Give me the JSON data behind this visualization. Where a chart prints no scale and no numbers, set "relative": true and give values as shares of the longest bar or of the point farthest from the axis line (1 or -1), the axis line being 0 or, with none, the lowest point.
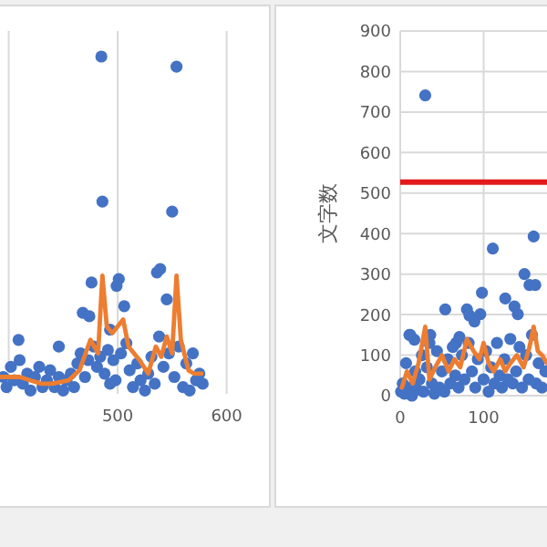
{
  "chart_data": [
    {
      "type": "scatter",
      "relative": true,
      "grid": "x",
      "marker": "circle",
      "tick_labels": "x",
      "xlim": [
        392,
        602
      ],
      "xticks": [
        {
          "value": 400,
          "label": null
        },
        500,
        600
      ],
      "series": [
        {
          "color": "#4472c4",
          "x": [
            485,
            554,
            486,
            550,
            476,
            501,
            536,
            539,
            545,
            499,
            506,
            468,
            474,
            493,
            446,
            409,
            493,
            395,
            398,
            402,
            405,
            410,
            413,
            417,
            420,
            424,
            428,
            431,
            435,
            438,
            442,
            446,
            450,
            453,
            457,
            460,
            463,
            466,
            470,
            473,
            478,
            481,
            484,
            488,
            491,
            496,
            498,
            503,
            508,
            511,
            514,
            518,
            521,
            525,
            528,
            531,
            534,
            538,
            542,
            547,
            552,
            556,
            560,
            563,
            566,
            569,
            572,
            575,
            578
          ],
          "values": [
            1.0,
            0.97,
            0.57,
            0.54,
            0.33,
            0.34,
            0.36,
            0.37,
            0.28,
            0.32,
            0.26,
            0.24,
            0.23,
            0.19,
            0.14,
            0.16,
            0.03,
            0.05,
            0.02,
            0.08,
            0.04,
            0.1,
            0.03,
            0.06,
            0.01,
            0.05,
            0.08,
            0.02,
            0.04,
            0.07,
            0.02,
            0.05,
            0.01,
            0.04,
            0.06,
            0.02,
            0.09,
            0.12,
            0.05,
            0.1,
            0.14,
            0.08,
            0.11,
            0.06,
            0.13,
            0.1,
            0.04,
            0.12,
            0.15,
            0.07,
            0.02,
            0.09,
            0.04,
            0.01,
            0.06,
            0.11,
            0.03,
            0.17,
            0.08,
            0.12,
            0.05,
            0.14,
            0.02,
            0.09,
            0.01,
            0.12,
            0.04,
            0.06,
            0.03
          ]
        },
        {
          "type": "line",
          "marker": "none",
          "color": "#ed7d31",
          "x": [
            392,
            400,
            410,
            420,
            430,
            440,
            455,
            465,
            475,
            482,
            486,
            490,
            495,
            500,
            505,
            510,
            520,
            528,
            535,
            540,
            545,
            550,
            554,
            558,
            565,
            570,
            577
          ],
          "values": [
            0.05,
            0.05,
            0.05,
            0.04,
            0.03,
            0.03,
            0.04,
            0.07,
            0.16,
            0.12,
            0.35,
            0.2,
            0.18,
            0.2,
            0.22,
            0.14,
            0.1,
            0.06,
            0.14,
            0.11,
            0.17,
            0.12,
            0.35,
            0.16,
            0.07,
            0.06,
            0.06
          ]
        }
      ]
    },
    {
      "type": "scatter",
      "ylabel": "文字数",
      "grid": true,
      "marker": "circle",
      "xlim": [
        0,
        176
      ],
      "xticks": [
        0,
        100
      ],
      "ylim": [
        0,
        900
      ],
      "yticks": [
        0,
        100,
        200,
        300,
        400,
        500,
        600,
        700,
        800,
        900
      ],
      "ref_lines": [
        {
          "axis": "y",
          "value": 527,
          "color": "#e31a1c"
        }
      ],
      "series": [
        {
          "color": "#4472c4",
          "x": [
            30,
            111,
            160,
            149,
            155,
            162,
            98,
            126,
            54,
            80,
            83,
            89,
            96,
            137,
            141,
            11,
            17,
            36,
            35,
            67,
            71,
            1,
            3,
            5,
            7,
            9,
            12,
            14,
            18,
            20,
            23,
            26,
            28,
            32,
            38,
            41,
            44,
            47,
            50,
            53,
            57,
            60,
            63,
            66,
            70,
            74,
            77,
            82,
            86,
            90,
            93,
            100,
            103,
            106,
            109,
            113,
            116,
            119,
            122,
            125,
            129,
            132,
            135,
            139,
            143,
            146,
            151,
            154,
            158,
            163,
            166,
            170,
            174
          ],
          "values": [
            741,
            363,
            393,
            300,
            273,
            273,
            254,
            240,
            213,
            213,
            198,
            183,
            201,
            220,
            201,
            150,
            138,
            150,
            130,
            130,
            145,
            10,
            30,
            5,
            80,
            20,
            150,
            0,
            60,
            15,
            40,
            100,
            10,
            70,
            30,
            5,
            110,
            20,
            60,
            10,
            90,
            30,
            120,
            50,
            20,
            100,
            40,
            130,
            60,
            20,
            90,
            40,
            110,
            10,
            70,
            30,
            130,
            50,
            20,
            90,
            40,
            140,
            30,
            60,
            120,
            20,
            100,
            40,
            150,
            30,
            80,
            20,
            60
          ]
        },
        {
          "type": "line",
          "marker": "none",
          "color": "#ed7d31",
          "x": [
            2,
            8,
            15,
            22,
            30,
            35,
            42,
            50,
            58,
            65,
            72,
            80,
            88,
            95,
            100,
            106,
            112,
            120,
            126,
            132,
            140,
            148,
            155,
            160,
            165,
            170,
            176
          ],
          "values": [
            20,
            60,
            30,
            80,
            170,
            40,
            70,
            100,
            60,
            90,
            70,
            140,
            110,
            90,
            130,
            80,
            60,
            90,
            60,
            80,
            100,
            70,
            120,
            170,
            110,
            100,
            80
          ]
        }
      ]
    }
  ]
}
